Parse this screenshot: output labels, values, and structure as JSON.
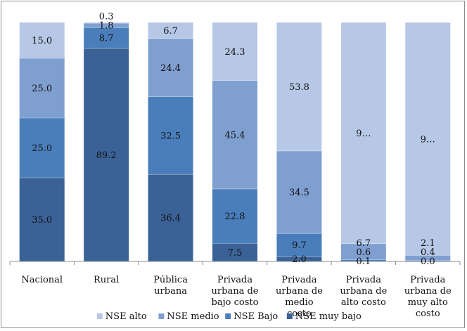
{
  "chart_data": {
    "type": "bar",
    "stacked": true,
    "categories": [
      "Nacional",
      "Rural",
      "Pública urbana",
      "Privada urbana de bajo costo",
      "Privada urbana de medio costo",
      "Privada urbana de alto costo",
      "Privada urbana de muy alto costo"
    ],
    "series": [
      {
        "name": "NSE muy bajo",
        "color": "#3b6297",
        "values": [
          35.0,
          89.2,
          36.4,
          7.5,
          2.0,
          0.1,
          0.0
        ]
      },
      {
        "name": "NSE Bajo",
        "color": "#4a7ebb",
        "values": [
          25.0,
          8.7,
          32.5,
          22.8,
          9.7,
          0.6,
          0.4
        ]
      },
      {
        "name": "NSE medio",
        "color": "#7f9fd0",
        "values": [
          25.0,
          1.8,
          24.4,
          45.4,
          34.5,
          6.7,
          2.1
        ]
      },
      {
        "name": "NSE alto",
        "color": "#b7c8e6",
        "values": [
          15.0,
          0.3,
          6.7,
          24.3,
          53.8,
          92.6,
          97.5
        ]
      }
    ],
    "data_labels": [
      [
        "35.0",
        "89.2",
        "36.4",
        "7.5",
        "2.0",
        "0.1",
        "0.0"
      ],
      [
        "25.0",
        "8.7",
        "32.5",
        "22.8",
        "9.7",
        "0.6",
        "0.4"
      ],
      [
        "25.0",
        "1.8",
        "24.4",
        "45.4",
        "34.5",
        "6.7",
        "2.1"
      ],
      [
        "15.0",
        "0.3",
        "6.7",
        "24.3",
        "53.8",
        "9…",
        "9…"
      ]
    ],
    "ylim": [
      0,
      100
    ],
    "grid": false,
    "legend": [
      "NSE alto",
      "NSE medio",
      "NSE Bajo",
      "NSE muy bajo"
    ],
    "legend_position": "bottom",
    "title": "",
    "xlabel": "",
    "ylabel": ""
  }
}
